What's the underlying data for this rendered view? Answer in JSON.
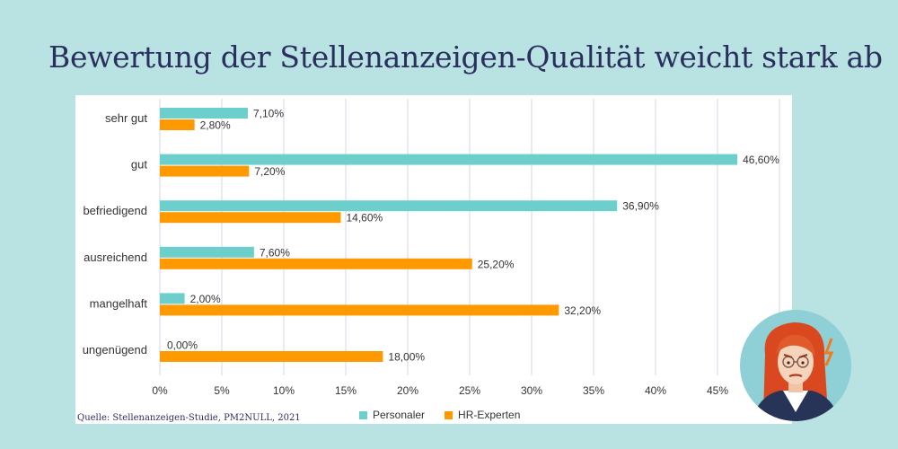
{
  "title": "Bewertung der Stellenanzeigen-Qualität weicht stark ab",
  "source": "Quelle: Stellenanzeigen-Studie, PM2NULL, 2021",
  "chart_data": {
    "type": "bar",
    "orientation": "horizontal",
    "categories": [
      "sehr gut",
      "gut",
      "befriedigend",
      "ausreichend",
      "mangelhaft",
      "ungenügend"
    ],
    "series": [
      {
        "name": "Personaler",
        "color": "#6ccfcc",
        "values": [
          7.1,
          46.6,
          36.9,
          7.6,
          2.0,
          0.0
        ],
        "labels": [
          "7,10%",
          "46,60%",
          "36,90%",
          "7,60%",
          "2,00%",
          "0,00%"
        ]
      },
      {
        "name": "HR-Experten",
        "color": "#ff9900",
        "values": [
          2.8,
          7.2,
          14.6,
          25.2,
          32.2,
          18.0
        ],
        "labels": [
          "2,80%",
          "7,20%",
          "14,60%",
          "25,20%",
          "32,20%",
          "18,00%"
        ]
      }
    ],
    "xlim": [
      0,
      50
    ],
    "xticks": [
      "0%",
      "5%",
      "10%",
      "15%",
      "20%",
      "25%",
      "30%",
      "35%",
      "40%",
      "45%"
    ],
    "grid": true,
    "legend_position": "bottom"
  }
}
